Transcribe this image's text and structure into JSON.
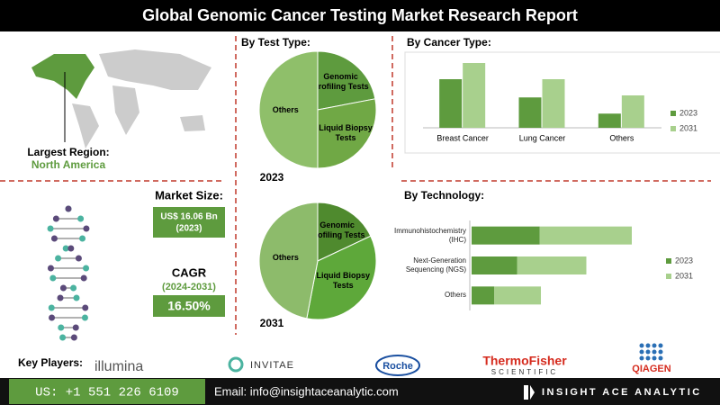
{
  "header": {
    "title": "Global Genomic Cancer Testing Market Research Report"
  },
  "region": {
    "label": "Largest Region:",
    "value": "North America"
  },
  "market_size": {
    "label": "Market Size:",
    "value": "US$ 16.06 Bn",
    "year": "(2023)"
  },
  "cagr": {
    "label": "CAGR",
    "period": "(2024-2031)",
    "value": "16.50%"
  },
  "key_players": {
    "label": "Key Players:",
    "names": [
      "illumina",
      "INVITAE",
      "Roche",
      "ThermoFisher",
      "SCIENTIFIC",
      "QIAGEN"
    ]
  },
  "footer": {
    "phone": "US: +1 551 226 6109",
    "email": "Email: info@insightaceanalytic.com",
    "brand": "INSIGHT ACE ANALYTIC"
  },
  "chart_data": [
    {
      "type": "pie",
      "title": "By  Test Type:",
      "subtitle": "2023",
      "categories": [
        "Genomic Profiling Tests",
        "Liquid Biopsy Tests",
        "Others"
      ],
      "values": [
        22,
        28,
        50
      ],
      "colors": [
        "#5e9b3e",
        "#70a845",
        "#8fbf6a"
      ]
    },
    {
      "type": "pie",
      "subtitle": "2031",
      "categories": [
        "Genomic Profiling Tests",
        "Liquid Biopsy Tests",
        "Others"
      ],
      "values": [
        18,
        35,
        47
      ],
      "colors": [
        "#4f8a2e",
        "#5ea83a",
        "#8dbb6b"
      ]
    },
    {
      "type": "bar",
      "title": "By Cancer Type:",
      "categories": [
        "Breast Cancer",
        "Lung Cancer",
        "Others"
      ],
      "series": [
        {
          "name": "2023",
          "color": "#5e9b3e",
          "values": [
            48,
            30,
            14
          ]
        },
        {
          "name": "2031",
          "color": "#a8d08d",
          "values": [
            64,
            48,
            32
          ]
        }
      ]
    },
    {
      "type": "bar",
      "orientation": "horizontal",
      "stacked": true,
      "title": "By Technology:",
      "categories": [
        "Immunohistochemistry (IHC)",
        "Next-Generation Sequencing (NGS)",
        "Others"
      ],
      "series": [
        {
          "name": "2023",
          "color": "#5e9b3e",
          "values": [
            60,
            40,
            20
          ]
        },
        {
          "name": "2031",
          "color": "#a8d08d",
          "values": [
            81,
            61,
            41
          ]
        }
      ]
    }
  ]
}
